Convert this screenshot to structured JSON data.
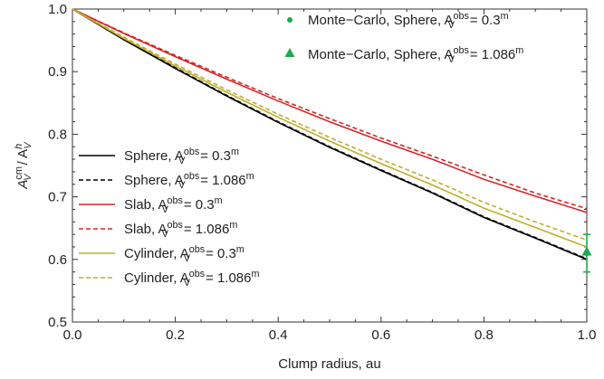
{
  "chart_data": {
    "type": "line",
    "xlabel": "Clump radius,  au",
    "ylabel": "A_V^cm / A_V^h",
    "xlim": [
      0.0,
      1.0
    ],
    "ylim": [
      0.5,
      1.0
    ],
    "xticks": [
      "0.0",
      "0.2",
      "0.4",
      "0.6",
      "0.8",
      "1.0"
    ],
    "yticks": [
      "0.5",
      "0.6",
      "0.7",
      "0.8",
      "0.9",
      "1.0"
    ],
    "grid": false,
    "legend_position": "center-left",
    "x": [
      0.0,
      0.1,
      0.2,
      0.3,
      0.4,
      0.5,
      0.6,
      0.7,
      0.8,
      0.9,
      1.0
    ],
    "series": [
      {
        "name": "Sphere, A_V^obs = 0.3^m",
        "label": "Sphere,",
        "sup": "m",
        "val": "0.3",
        "style": "solid",
        "color": "#000000",
        "values": [
          1.0,
          0.951,
          0.905,
          0.861,
          0.819,
          0.779,
          0.742,
          0.706,
          0.667,
          0.634,
          0.6
        ]
      },
      {
        "name": "Sphere, A_V^obs = 1.086^m",
        "label": "Sphere,",
        "sup": "m",
        "val": "1.086",
        "style": "dashed",
        "color": "#000000",
        "values": [
          1.0,
          0.952,
          0.906,
          0.862,
          0.82,
          0.78,
          0.743,
          0.707,
          0.668,
          0.635,
          0.601
        ]
      },
      {
        "name": "Slab, A_V^obs = 0.3^m",
        "label": "Slab,",
        "sup": "m",
        "val": "0.3",
        "style": "solid",
        "color": "#d62728",
        "values": [
          1.0,
          0.961,
          0.924,
          0.888,
          0.853,
          0.82,
          0.789,
          0.76,
          0.728,
          0.701,
          0.675
        ]
      },
      {
        "name": "Slab, A_V^obs = 1.086^m",
        "label": "Slab,",
        "sup": "m",
        "val": "1.086",
        "style": "dashed",
        "color": "#d62728",
        "values": [
          1.0,
          0.962,
          0.926,
          0.891,
          0.857,
          0.825,
          0.794,
          0.765,
          0.735,
          0.706,
          0.681
        ]
      },
      {
        "name": "Cylinder, A_V^obs = 0.3^m",
        "label": "Cylinder,",
        "sup": "m",
        "val": "0.3",
        "style": "solid",
        "color": "#bfae2c",
        "values": [
          1.0,
          0.953,
          0.909,
          0.867,
          0.827,
          0.789,
          0.753,
          0.719,
          0.682,
          0.651,
          0.62
        ]
      },
      {
        "name": "Cylinder, A_V^obs = 1.086^m",
        "label": "Cylinder,",
        "sup": "m",
        "val": "1.086",
        "style": "dashed",
        "color": "#bfae2c",
        "values": [
          1.0,
          0.955,
          0.912,
          0.871,
          0.832,
          0.795,
          0.76,
          0.727,
          0.691,
          0.66,
          0.631
        ]
      }
    ],
    "monte_carlo": [
      {
        "name": "Monte-Carlo, Sphere, A_V^obs = 0.3^m",
        "label": "Monte−Carlo, Sphere,",
        "val": "0.3",
        "sup": "m",
        "marker": "circle",
        "color": "#1fa84f",
        "x": 1.0,
        "y": 0.61,
        "err": 0.03
      },
      {
        "name": "Monte-Carlo, Sphere, A_V^obs = 1.086^m",
        "label": "Monte−Carlo, Sphere,",
        "val": "1.086",
        "sup": "m",
        "marker": "triangle",
        "color": "#1fa84f",
        "x": 1.0,
        "y": 0.612,
        "err": 0.0
      }
    ]
  }
}
